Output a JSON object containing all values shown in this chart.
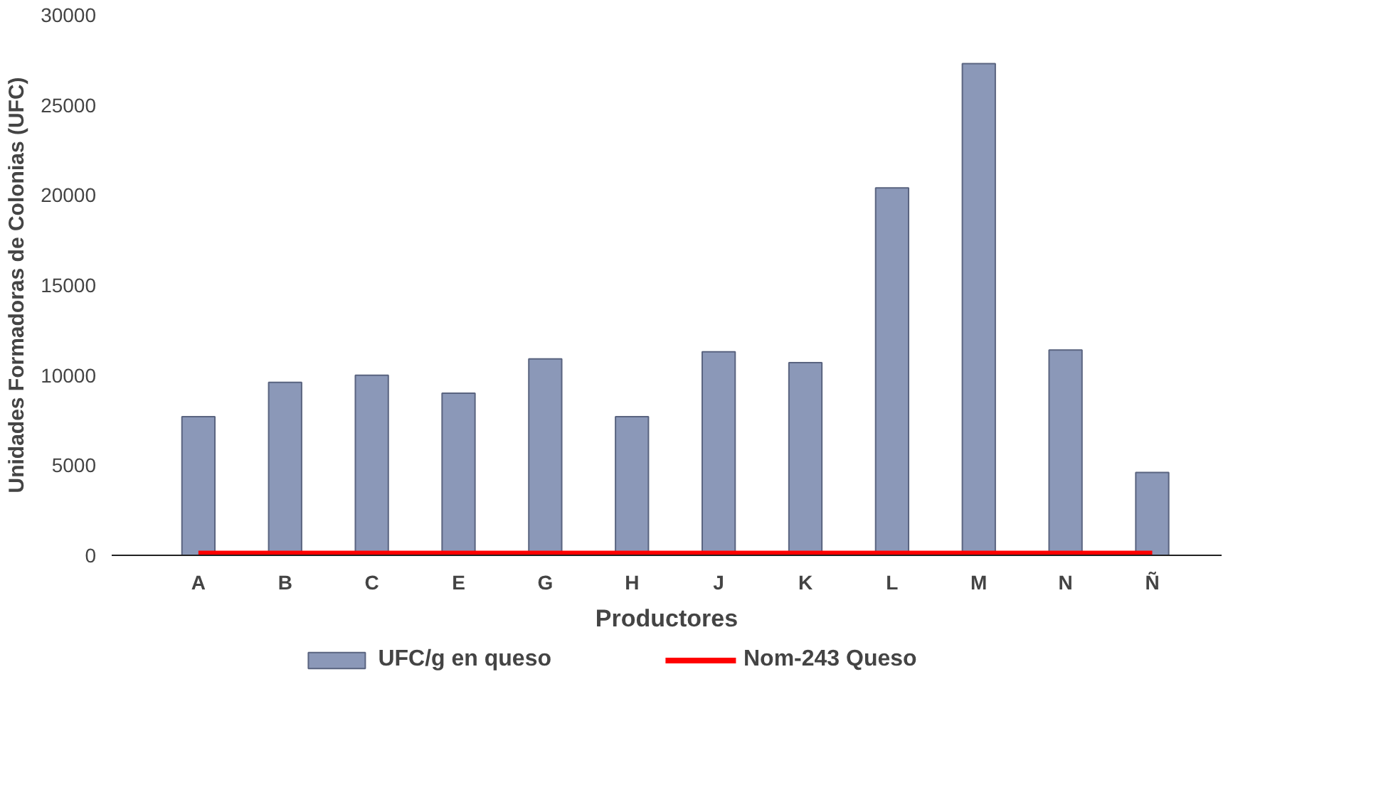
{
  "chart_data": {
    "type": "bar",
    "xlabel": "Productores",
    "ylabel": "Unidades Formadoras de Colonias (UFC)",
    "categories": [
      "A",
      "B",
      "C",
      "E",
      "G",
      "H",
      "J",
      "K",
      "L",
      "M",
      "N",
      "Ñ"
    ],
    "series": [
      {
        "name": "UFC/g en queso",
        "color": "#8b98b8",
        "values": [
          7700,
          9600,
          10000,
          9000,
          10900,
          7700,
          11300,
          10700,
          20400,
          27300,
          11400,
          4600
        ]
      },
      {
        "name": "Nom-243 Queso",
        "color": "#ff0000",
        "type": "line",
        "values": [
          100,
          100,
          100,
          100,
          100,
          100,
          100,
          100,
          100,
          100,
          100,
          100
        ]
      }
    ],
    "ylim": [
      0,
      30000
    ],
    "yticks": [
      0,
      5000,
      10000,
      15000,
      20000,
      25000,
      30000
    ],
    "grid": false,
    "legend": "bottom"
  }
}
